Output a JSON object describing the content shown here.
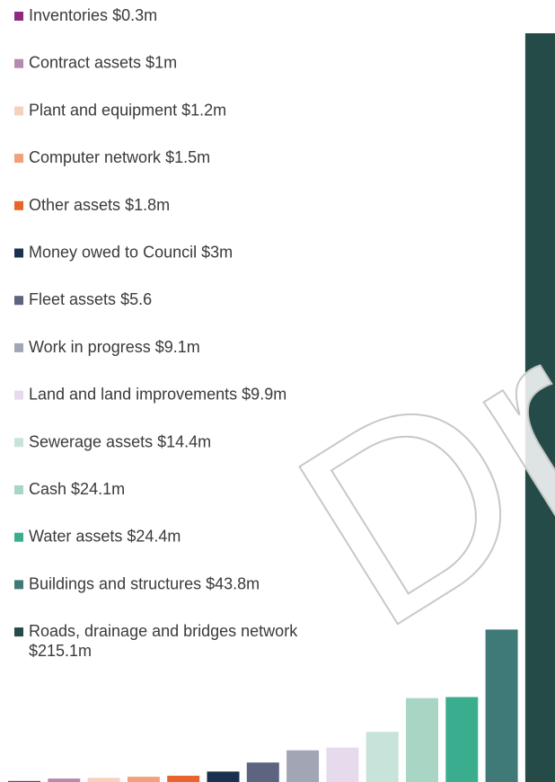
{
  "chart_data": {
    "type": "bar",
    "categories": [
      "Inventories",
      "Contract assets",
      "Plant and equipment",
      "Computer network",
      "Other assets",
      "Money owed to Council",
      "Fleet assets",
      "Work in progress",
      "Land and land improvements",
      "Sewerage assets",
      "Cash",
      "Water assets",
      "Buildings and structures",
      "Roads, drainage and bridges network"
    ],
    "values": [
      0.3,
      1,
      1.2,
      1.5,
      1.8,
      3,
      5.6,
      9.1,
      9.9,
      14.4,
      24.1,
      24.4,
      43.8,
      215.1
    ],
    "value_labels": [
      "$0.3m",
      "$1m",
      "$1.2m",
      "$1.5m",
      "$1.8m",
      "$3m",
      "$5.6",
      "$9.1m",
      "$9.9m",
      "$14.4m",
      "$24.1m",
      "$24.4m",
      "$43.8m",
      "$215.1m"
    ],
    "colors": [
      "#8e2a7e",
      "#b889b0",
      "#f6d2bd",
      "#f0a07a",
      "#e8642a",
      "#1b2f4e",
      "#5c6480",
      "#a2a5b4",
      "#e6dbed",
      "#c7e3da",
      "#a8d5c4",
      "#3aad8f",
      "#3f7a78",
      "#244b47"
    ],
    "ylim": [
      0,
      215.1
    ],
    "watermark": "Draft"
  }
}
